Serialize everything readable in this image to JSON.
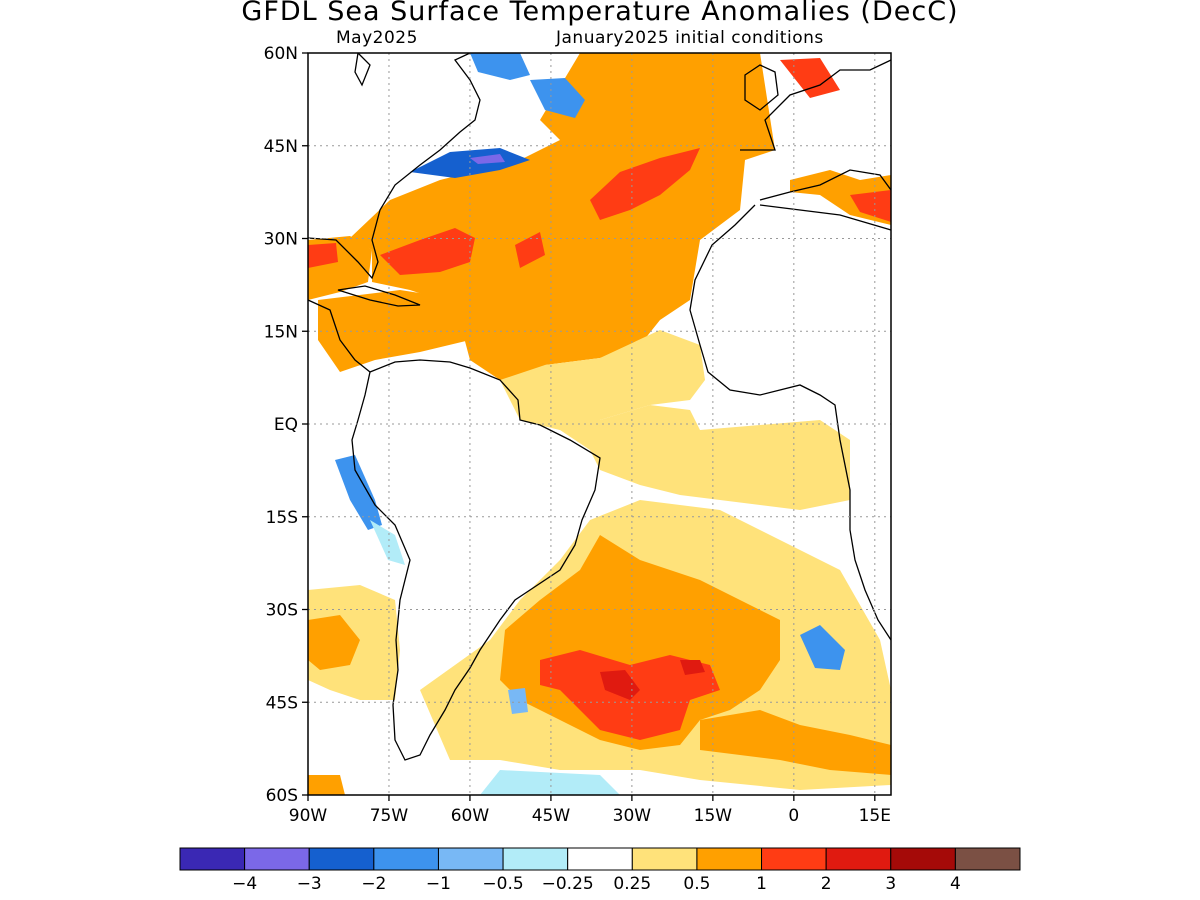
{
  "title": "GFDL Sea Surface Temperature Anomalies (DecC)",
  "subtitle_left": "May2025",
  "subtitle_right": "January2025 initial conditions",
  "lat_ticks": [
    {
      "label": "60N",
      "value": 60
    },
    {
      "label": "45N",
      "value": 45
    },
    {
      "label": "30N",
      "value": 30
    },
    {
      "label": "15N",
      "value": 15
    },
    {
      "label": "EQ",
      "value": 0
    },
    {
      "label": "15S",
      "value": -15
    },
    {
      "label": "30S",
      "value": -30
    },
    {
      "label": "45S",
      "value": -45
    },
    {
      "label": "60S",
      "value": -60
    }
  ],
  "lon_ticks": [
    {
      "label": "90W",
      "value": -90
    },
    {
      "label": "75W",
      "value": -75
    },
    {
      "label": "60W",
      "value": -60
    },
    {
      "label": "45W",
      "value": -45
    },
    {
      "label": "30W",
      "value": -30
    },
    {
      "label": "15W",
      "value": -15
    },
    {
      "label": "0",
      "value": 0
    },
    {
      "label": "15E",
      "value": 15
    }
  ],
  "colorbar": {
    "colors": [
      "#3a28b4",
      "#7b68e8",
      "#1560cf",
      "#3d93ee",
      "#78b8f5",
      "#b2ecf8",
      "#ffffff",
      "#ffe27a",
      "#ffa000",
      "#ff3c14",
      "#e01a10",
      "#a50a08",
      "#7b5044"
    ],
    "labels": [
      "−4",
      "−3",
      "−2",
      "−1",
      "−0.5",
      "−0.25",
      "0.25",
      "0.5",
      "1",
      "2",
      "3",
      "4"
    ]
  },
  "map": {
    "extent": {
      "lon_min": -90,
      "lon_max": 18,
      "lat_min": -60,
      "lat_max": 60
    },
    "anomaly_colors": {
      "warm_light": "#ffe27a",
      "warm": "#ffa000",
      "warm_strong": "#ff3c14",
      "warm_very": "#e01a10",
      "cool_light": "#b2ecf8",
      "cool": "#78b8f5",
      "cool_mid": "#3d93ee",
      "cool_strong": "#1560cf",
      "cool_very": "#7b68e8"
    }
  }
}
